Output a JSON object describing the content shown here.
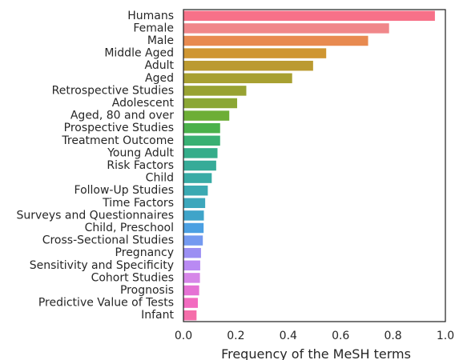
{
  "chart_data": {
    "type": "bar",
    "orientation": "horizontal",
    "xlabel": "Frequency of the MeSH terms",
    "ylabel": "",
    "xlim": [
      0,
      1.0
    ],
    "xticks": [
      "0.0",
      "0.2",
      "0.4",
      "0.6",
      "0.8",
      "1.0"
    ],
    "grid": false,
    "categories": [
      "Humans",
      "Female",
      "Male",
      "Middle Aged",
      "Adult",
      "Aged",
      "Retrospective Studies",
      "Adolescent",
      "Aged, 80 and over",
      "Prospective Studies",
      "Treatment Outcome",
      "Young Adult",
      "Risk Factors",
      "Child",
      "Follow-Up Studies",
      "Time Factors",
      "Surveys and Questionnaires",
      "Child, Preschool",
      "Cross-Sectional Studies",
      "Pregnancy",
      "Sensitivity and Specificity",
      "Cohort Studies",
      "Prognosis",
      "Predictive Value of Tests",
      "Infant"
    ],
    "values": [
      0.96,
      0.785,
      0.705,
      0.545,
      0.495,
      0.415,
      0.24,
      0.205,
      0.175,
      0.14,
      0.14,
      0.13,
      0.125,
      0.108,
      0.093,
      0.083,
      0.078,
      0.077,
      0.074,
      0.067,
      0.064,
      0.063,
      0.06,
      0.055,
      0.05
    ],
    "colors": [
      "#f77189",
      "#f0878a",
      "#e88a50",
      "#cf9632",
      "#bb9a31",
      "#a8a031",
      "#98a232",
      "#8ba735",
      "#6dae36",
      "#4bb14b",
      "#39b073",
      "#35ad8a",
      "#36ab98",
      "#38aba5",
      "#3aa9b2",
      "#3da7bc",
      "#3fa4c9",
      "#4ba0e2",
      "#7499f0",
      "#9b8ff3",
      "#b98af3",
      "#d686e8",
      "#e571d4",
      "#f26bc0",
      "#f56eaa"
    ]
  }
}
